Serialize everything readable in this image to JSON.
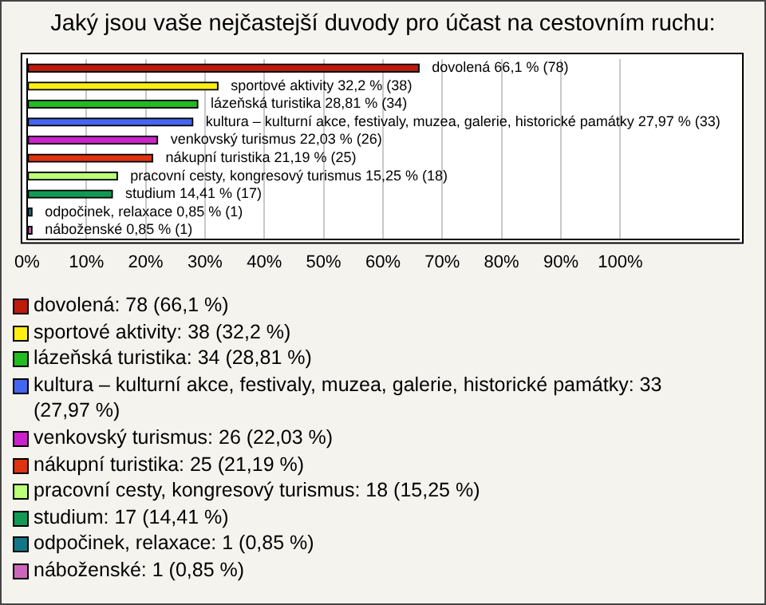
{
  "chart_data": {
    "type": "bar",
    "orientation": "horizontal",
    "title": "Jaký jsou vaše nejčastejší duvody pro účast na cestovním ruchu:",
    "categories": [
      "dovolená",
      "sportové aktivity",
      "lázeňská turistika",
      "kultura – kulturní akce, festivaly, muzea, galerie, historické památky",
      "venkovský turismus",
      "nákupní turistika",
      "pracovní cesty, kongresový turismus",
      "studium",
      "odpočinek, relaxace",
      "náboženské"
    ],
    "values": [
      66.1,
      32.2,
      28.81,
      27.97,
      22.03,
      21.19,
      15.25,
      14.41,
      0.85,
      0.85
    ],
    "colors": [
      "#c01a0c",
      "#ffee11",
      "#22bb22",
      "#4466ee",
      "#cc22cc",
      "#dd3311",
      "#bbff77",
      "#119955",
      "#117788",
      "#cc66bb"
    ],
    "value_labels": [
      "66,1 % (78)",
      "32,2 % (38)",
      "28,81 % (34)",
      "27,97 % (33)",
      "22,03 % (26)",
      "21,19 % (25)",
      "15,25 % (18)",
      "14,41 % (17)",
      "0,85 % (1)",
      "0,85 % (1)"
    ],
    "annotations": [
      "dovolená: 78 (66,1 %)",
      "sportové aktivity: 38 (32,2 %)",
      "lázeňská turistika: 34 (28,81 %)",
      "kultura – kulturní akce, festivaly, muzea, galerie, historické památky: 33 (27,97 %)",
      "venkovský turismus: 26 (22,03 %)",
      "nákupní turistika: 25 (21,19 %)",
      "pracovní cesty, kongresový turismus: 18 (15,25 %)",
      "studium: 17 (14,41 %)",
      "odpočinek, relaxace: 1 (0,85 %)",
      "náboženské: 1 (0,85 %)"
    ],
    "xlim": [
      0,
      120
    ],
    "xticks": [
      {
        "value": 0,
        "label": "0%"
      },
      {
        "value": 10,
        "label": "10%"
      },
      {
        "value": 20,
        "label": "20%"
      },
      {
        "value": 30,
        "label": "30%"
      },
      {
        "value": 40,
        "label": "40%"
      },
      {
        "value": 50,
        "label": "50%"
      },
      {
        "value": 60,
        "label": "60%"
      },
      {
        "value": 70,
        "label": "70%"
      },
      {
        "value": 80,
        "label": "80%"
      },
      {
        "value": 90,
        "label": "90%"
      },
      {
        "value": 100,
        "label": "100%"
      }
    ],
    "grid": "x",
    "tick_labels": "x"
  }
}
